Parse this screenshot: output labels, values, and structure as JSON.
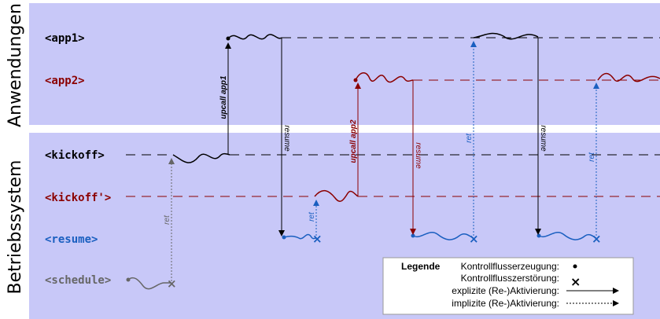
{
  "sections": {
    "applications": "Anwendungen",
    "os": "Betriebssystem"
  },
  "lanes": {
    "app1": "<app1>",
    "app2": "<app2>",
    "kickoff": "<kickoff>",
    "kickoff2": "<kickoff'>",
    "resume": "<resume>",
    "schedule": "<schedule>"
  },
  "arrow_labels": {
    "upcall_app1": "upcall app1",
    "upcall_app2": "upcall app2",
    "resume1": "resume",
    "resume2": "resume",
    "resume3": "resume",
    "ret1": "ret",
    "ret2": "ret",
    "ret3": "ret",
    "ret4": "ret"
  },
  "legend": {
    "title": "Legende",
    "items": [
      "Kontrollflusserzeugung:",
      "Kontrollflusszerstörung:",
      "explizite (Re-)Aktivierung:",
      "implizite (Re-)Aktivierung:"
    ]
  },
  "colors": {
    "panel": "#c8c8f8",
    "black": "#000000",
    "red": "#8b0000",
    "blue": "#1a5fc0",
    "gray": "#666666"
  }
}
